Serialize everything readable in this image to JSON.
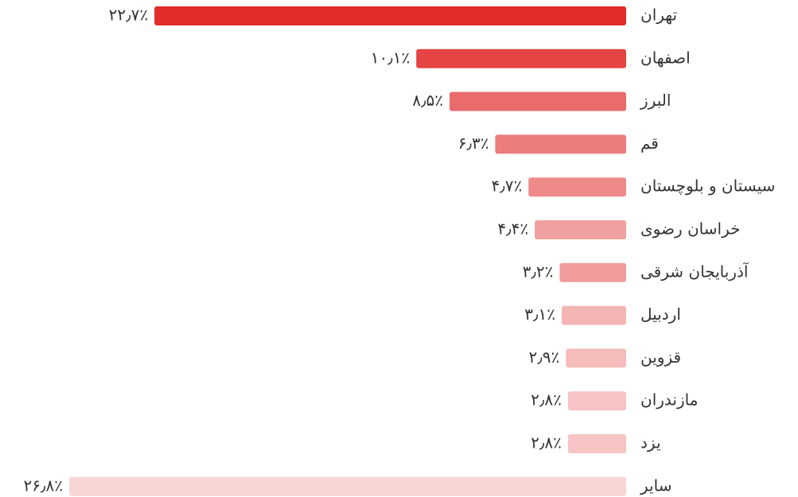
{
  "chart_data": {
    "type": "bar",
    "orientation": "horizontal",
    "categories": [
      "تهران",
      "اصفهان",
      "البرز",
      "قم",
      "سیستان و بلوچستان",
      "خراسان رضوی",
      "آذربایجان شرقی",
      "اردبیل",
      "قزوین",
      "مازندران",
      "یزد",
      "سایر"
    ],
    "values": [
      22.7,
      10.1,
      8.5,
      6.3,
      4.7,
      4.4,
      3.2,
      3.1,
      2.9,
      2.8,
      2.8,
      26.8
    ],
    "value_labels": [
      "۲۲٫۷٪",
      "۱۰٫۱٪",
      "۸٫۵٪",
      "۶٫۳٪",
      "۴٫۷٪",
      "۴٫۴٪",
      "۳٫۲٪",
      "۳٫۱٪",
      "۲٫۹٪",
      "۲٫۸٪",
      "۲٫۸٪",
      "۲۶٫۸٪"
    ],
    "colors": [
      "#e32b2b",
      "#e54444",
      "#ea6b6b",
      "#ec7d7d",
      "#ee8a8a",
      "#f0a0a0",
      "#f09c9c",
      "#f4b5b5",
      "#f5bcbc",
      "#f6c4c4",
      "#f6c4c4",
      "#f8d6d6"
    ]
  }
}
